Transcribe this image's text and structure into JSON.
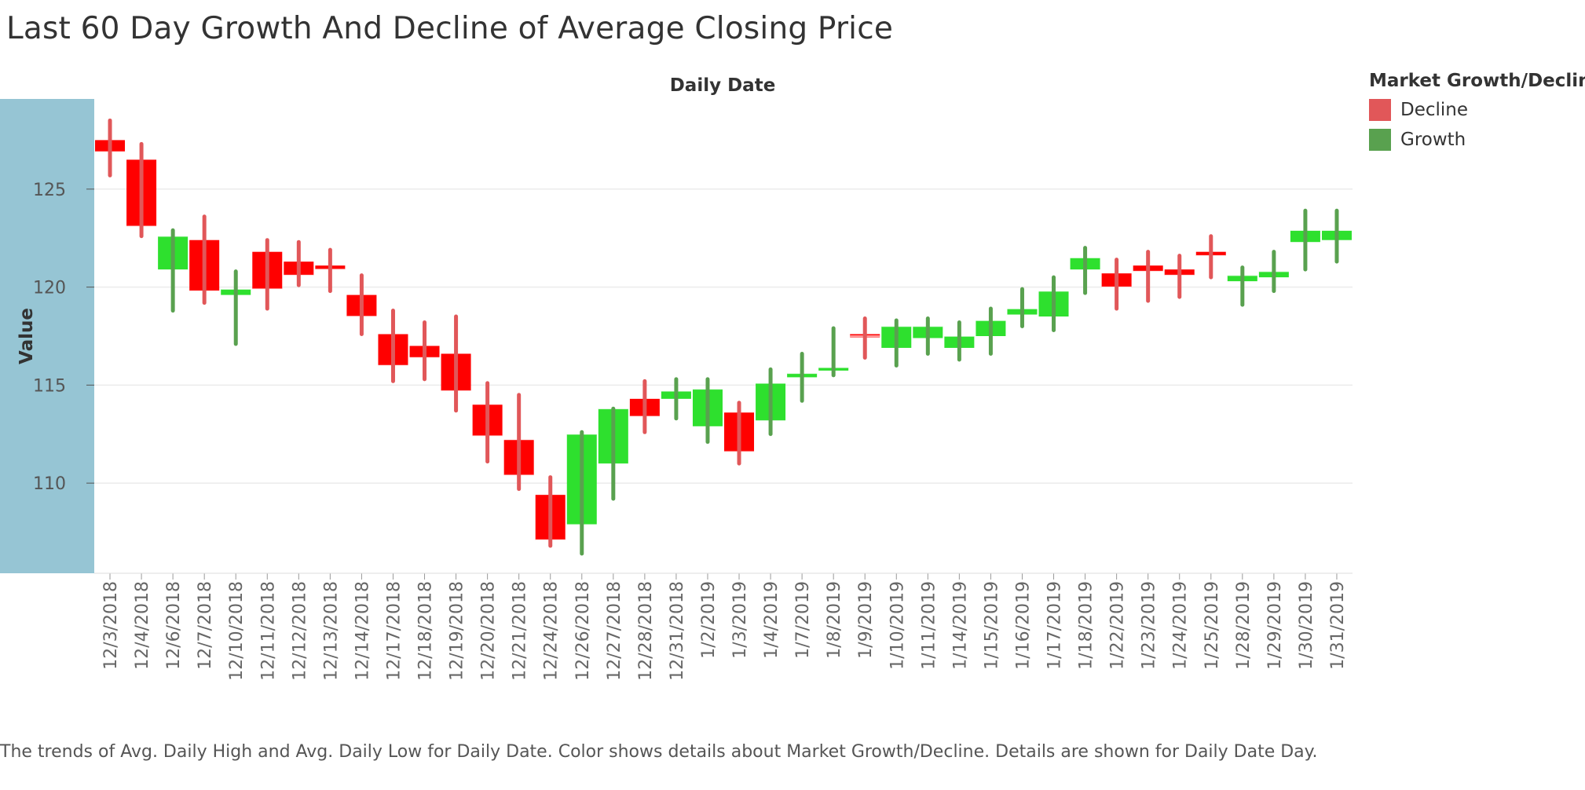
{
  "title": "Last 60 Day Growth And Decline of Average Closing Price",
  "caption": "The trends of Avg. Daily High and Avg. Daily Low for Daily Date.  Color shows details about Market Growth/Decline.  Details are shown for Daily Date Day.",
  "legend": {
    "title": "Market Growth/Decline",
    "items": [
      {
        "label": "Decline",
        "color": "#e15759"
      },
      {
        "label": "Growth",
        "color": "#59a14f"
      }
    ]
  },
  "colors": {
    "decline_bar": "#ff0000",
    "decline_wick": "#e15759",
    "growth_bar": "#2ee02e",
    "growth_wick": "#59a14f",
    "axis_band": "#96c5d4",
    "gridline": "#ebebeb"
  },
  "chart_data": {
    "type": "bar",
    "subtype": "candlestick",
    "xlabel": "Daily Date",
    "ylabel": "Value",
    "ylim": [
      105.4,
      129.6
    ],
    "yticks": [
      110,
      115,
      120,
      125
    ],
    "categories": [
      "12/3/2018",
      "12/4/2018",
      "12/6/2018",
      "12/7/2018",
      "12/10/2018",
      "12/11/2018",
      "12/12/2018",
      "12/13/2018",
      "12/14/2018",
      "12/17/2018",
      "12/18/2018",
      "12/19/2018",
      "12/20/2018",
      "12/21/2018",
      "12/24/2018",
      "12/26/2018",
      "12/27/2018",
      "12/28/2018",
      "12/31/2018",
      "1/2/2019",
      "1/3/2019",
      "1/4/2019",
      "1/7/2019",
      "1/8/2019",
      "1/9/2019",
      "1/10/2019",
      "1/11/2019",
      "1/14/2019",
      "1/15/2019",
      "1/16/2019",
      "1/17/2019",
      "1/18/2019",
      "1/22/2019",
      "1/23/2019",
      "1/24/2019",
      "1/25/2019",
      "1/28/2019",
      "1/29/2019",
      "1/30/2019",
      "1/31/2019"
    ],
    "series": [
      {
        "name": "Open",
        "values": [
          127.5,
          126.5,
          120.9,
          122.4,
          119.6,
          121.8,
          121.3,
          121.1,
          119.6,
          117.6,
          117.0,
          116.6,
          114.0,
          112.2,
          109.4,
          107.9,
          111.0,
          114.3,
          114.3,
          112.9,
          113.6,
          113.2,
          115.4,
          115.9,
          117.6,
          116.9,
          117.4,
          116.9,
          117.5,
          118.6,
          118.5,
          120.9,
          120.7,
          121.1,
          120.9,
          121.8,
          120.3,
          120.5,
          122.3,
          122.4
        ]
      },
      {
        "name": "Close",
        "values": [
          126.9,
          123.1,
          122.6,
          119.8,
          119.9,
          119.9,
          120.6,
          120.9,
          118.5,
          116.0,
          116.4,
          114.7,
          112.4,
          110.4,
          107.1,
          112.5,
          113.8,
          113.4,
          114.7,
          114.8,
          111.6,
          115.1,
          115.6,
          115.9,
          117.5,
          118.0,
          118.0,
          117.5,
          118.3,
          118.9,
          119.8,
          121.5,
          120.0,
          120.8,
          120.6,
          121.6,
          120.6,
          120.8,
          122.9,
          122.9
        ]
      },
      {
        "name": "High",
        "values": [
          128.5,
          127.3,
          122.9,
          123.6,
          120.8,
          122.4,
          122.3,
          121.9,
          120.6,
          118.8,
          118.2,
          118.5,
          115.1,
          114.5,
          110.3,
          112.6,
          113.8,
          115.2,
          115.3,
          115.3,
          114.1,
          115.8,
          116.6,
          117.9,
          118.4,
          118.3,
          118.4,
          118.2,
          118.9,
          119.9,
          120.5,
          122.0,
          121.4,
          121.8,
          121.6,
          122.6,
          121.0,
          121.8,
          123.9,
          123.9
        ]
      },
      {
        "name": "Low",
        "values": [
          125.7,
          122.6,
          118.8,
          119.2,
          117.1,
          118.9,
          120.1,
          119.8,
          117.6,
          115.2,
          115.3,
          113.7,
          111.1,
          109.7,
          106.8,
          106.4,
          109.2,
          112.6,
          113.3,
          112.1,
          111.0,
          112.5,
          114.2,
          115.5,
          116.4,
          116.0,
          116.6,
          116.3,
          116.6,
          118.0,
          117.8,
          119.7,
          118.9,
          119.3,
          119.5,
          120.5,
          119.1,
          119.8,
          120.9,
          121.3
        ]
      },
      {
        "name": "Market",
        "values": [
          "Decline",
          "Decline",
          "Growth",
          "Decline",
          "Growth",
          "Decline",
          "Decline",
          "Decline",
          "Decline",
          "Decline",
          "Decline",
          "Decline",
          "Decline",
          "Decline",
          "Decline",
          "Growth",
          "Growth",
          "Decline",
          "Growth",
          "Growth",
          "Decline",
          "Growth",
          "Growth",
          "Growth",
          "Decline",
          "Growth",
          "Growth",
          "Growth",
          "Growth",
          "Growth",
          "Growth",
          "Growth",
          "Decline",
          "Decline",
          "Decline",
          "Decline",
          "Growth",
          "Growth",
          "Growth",
          "Growth"
        ]
      }
    ]
  }
}
